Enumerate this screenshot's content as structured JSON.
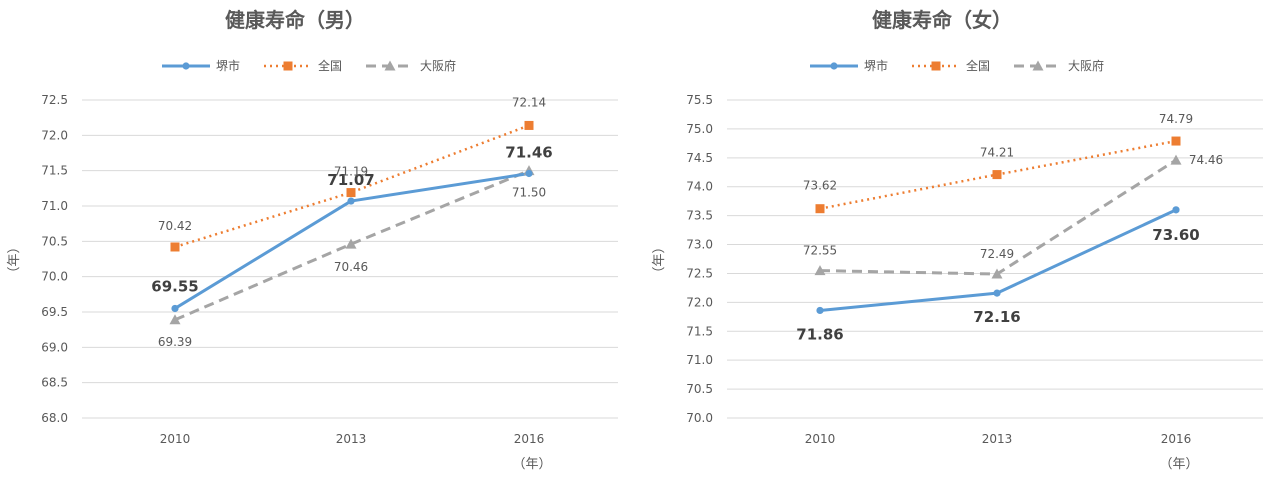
{
  "legend_glyphs": {
    "sakai": "●",
    "zenkoku": "■",
    "osaka": "▲"
  },
  "colors": {
    "sakai": "#5b9bd5",
    "zenkoku": "#ed7d31",
    "osaka": "#a5a5a5",
    "grid": "#d9d9d9",
    "text": "#595959"
  },
  "chart_data": [
    {
      "type": "line",
      "title": "健康寿命（男）",
      "ylabel": "（年）",
      "xlabel": "（年）",
      "legend_position": "top",
      "grid": true,
      "categories": [
        "2010",
        "2013",
        "2016"
      ],
      "ylim": [
        68.0,
        72.5
      ],
      "ystep": 0.5,
      "yticks": [
        "68.0",
        "68.5",
        "69.0",
        "69.5",
        "70.0",
        "70.5",
        "71.0",
        "71.5",
        "72.0",
        "72.5"
      ],
      "series": [
        {
          "name": "堺市",
          "key": "sakai",
          "values": [
            69.55,
            71.07,
            71.46
          ],
          "labels": [
            "69.55",
            "71.07",
            "71.46"
          ]
        },
        {
          "name": "全国",
          "key": "zenkoku",
          "values": [
            70.42,
            71.19,
            72.14
          ],
          "labels": [
            "70.42",
            "71.19",
            "72.14"
          ]
        },
        {
          "name": "大阪府",
          "key": "osaka",
          "values": [
            69.39,
            70.46,
            71.5
          ],
          "labels": [
            "69.39",
            "70.46",
            "71.50"
          ]
        }
      ]
    },
    {
      "type": "line",
      "title": "健康寿命（女）",
      "ylabel": "（年）",
      "xlabel": "（年）",
      "legend_position": "top",
      "grid": true,
      "categories": [
        "2010",
        "2013",
        "2016"
      ],
      "ylim": [
        70.0,
        75.5
      ],
      "ystep": 0.5,
      "yticks": [
        "70.0",
        "70.5",
        "71.0",
        "71.5",
        "72.0",
        "72.5",
        "73.0",
        "73.5",
        "74.0",
        "74.5",
        "75.0",
        "75.5"
      ],
      "series": [
        {
          "name": "堺市",
          "key": "sakai",
          "values": [
            71.86,
            72.16,
            73.6
          ],
          "labels": [
            "71.86",
            "72.16",
            "73.60"
          ]
        },
        {
          "name": "全国",
          "key": "zenkoku",
          "values": [
            73.62,
            74.21,
            74.79
          ],
          "labels": [
            "73.62",
            "74.21",
            "74.79"
          ]
        },
        {
          "name": "大阪府",
          "key": "osaka",
          "values": [
            72.55,
            72.49,
            74.46
          ],
          "labels": [
            "72.55",
            "72.49",
            "74.46"
          ]
        }
      ]
    }
  ]
}
